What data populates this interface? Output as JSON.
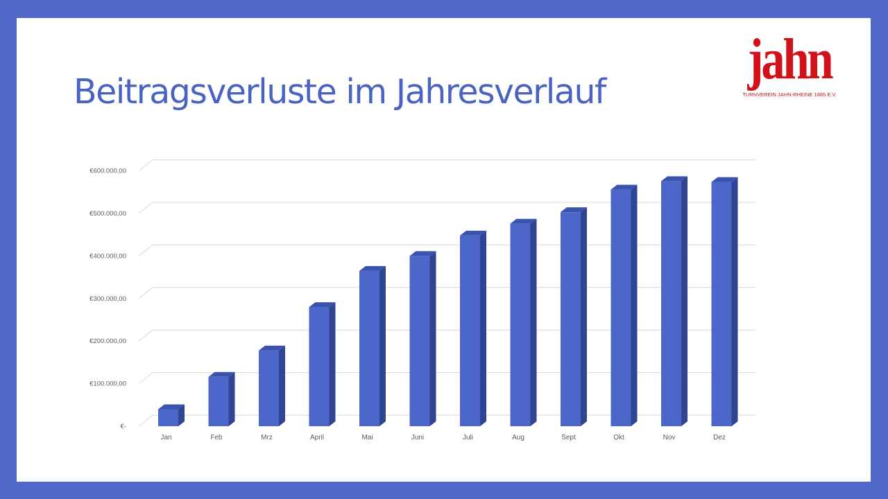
{
  "slide": {
    "title": "Beitragsverluste im Jahresverlauf",
    "logo": {
      "word": "jahn",
      "subtitle": "TURNVEREIN JAHN-RHEINE 1885 E.V."
    }
  },
  "colors": {
    "frame": "#4f67c8",
    "title": "#4a63c3",
    "bar_front": "#4d66c9",
    "bar_side": "#2f4592",
    "bar_top": "#3a53ad",
    "logo": "#d1121b",
    "gridline": "#d9d9d9",
    "axis_text": "#595959"
  },
  "chart_data": {
    "type": "bar",
    "style": "3d-column",
    "title": "",
    "xlabel": "",
    "ylabel": "",
    "categories": [
      "Jan",
      "Feb",
      "Mrz",
      "April",
      "Mai",
      "Juni",
      "Juli",
      "Aug",
      "Sept",
      "Okt",
      "Nov",
      "Dez"
    ],
    "values": [
      40000,
      116000,
      178000,
      280000,
      365000,
      400000,
      448000,
      476000,
      503000,
      556000,
      576000,
      574000
    ],
    "ylim": [
      0,
      600000
    ],
    "yticks": [
      0,
      100000,
      200000,
      300000,
      400000,
      500000,
      600000
    ],
    "ytick_labels": [
      "€-",
      "€100.000,00",
      "€200.000,00",
      "€300.000,00",
      "€400.000,00",
      "€500.000,00",
      "€600.000,00"
    ],
    "grid": true,
    "legend": "none"
  }
}
